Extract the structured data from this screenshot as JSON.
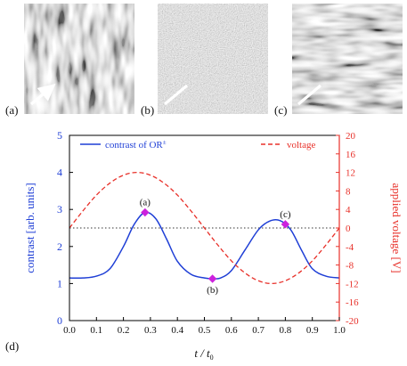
{
  "panels": [
    {
      "label": "(a)",
      "texture": "stripes-diagonal"
    },
    {
      "label": "(b)",
      "texture": "noise-flat"
    },
    {
      "label": "(c)",
      "texture": "stripes-horizontal"
    }
  ],
  "chart_data": {
    "type": "line",
    "panel_label": "(d)",
    "xlabel_main": "t / t",
    "xlabel_sub": "0",
    "ylabel_left": "contrast  [arb. units]",
    "ylabel_right": "applied voltage [V]",
    "xlim": [
      0.0,
      1.0
    ],
    "ylim_left": [
      0,
      5
    ],
    "ylim_right": [
      -20,
      20
    ],
    "x_ticks": [
      "0.0",
      "0.1",
      "0.2",
      "0.3",
      "0.4",
      "0.5",
      "0.6",
      "0.7",
      "0.8",
      "0.9",
      "1.0"
    ],
    "y_left_ticks": [
      "0",
      "1",
      "2",
      "3",
      "4",
      "5"
    ],
    "y_right_ticks": [
      "-20",
      "-16",
      "-12",
      "-8",
      "-4",
      "0",
      "4",
      "8",
      "12",
      "16",
      "20"
    ],
    "grid": false,
    "reference_line": {
      "axis": "left",
      "value": 2.5,
      "style": "dotted"
    },
    "series": [
      {
        "name": "contrast of OR",
        "name_superscript": "±",
        "axis": "left",
        "color": "#1f3fd6",
        "style": "solid",
        "x": [
          0.0,
          0.05,
          0.1,
          0.15,
          0.2,
          0.24,
          0.28,
          0.32,
          0.36,
          0.4,
          0.45,
          0.5,
          0.53,
          0.56,
          0.6,
          0.65,
          0.7,
          0.74,
          0.78,
          0.82,
          0.86,
          0.9,
          0.95,
          1.0
        ],
        "values": [
          1.15,
          1.15,
          1.2,
          1.4,
          2.0,
          2.6,
          2.92,
          2.75,
          2.2,
          1.6,
          1.25,
          1.15,
          1.13,
          1.15,
          1.35,
          1.9,
          2.45,
          2.68,
          2.7,
          2.45,
          1.9,
          1.4,
          1.2,
          1.15
        ]
      },
      {
        "name": "voltage",
        "axis": "right",
        "color": "#e8312a",
        "style": "dashed",
        "x": [
          0.0,
          0.05,
          0.1,
          0.15,
          0.2,
          0.25,
          0.3,
          0.35,
          0.4,
          0.45,
          0.5,
          0.55,
          0.6,
          0.65,
          0.7,
          0.75,
          0.8,
          0.85,
          0.9,
          0.95,
          1.0
        ],
        "values": [
          0.0,
          3.7,
          7.1,
          9.7,
          11.4,
          12.0,
          11.4,
          9.7,
          7.1,
          3.7,
          0.0,
          -3.7,
          -7.1,
          -9.7,
          -11.4,
          -12.0,
          -11.4,
          -9.7,
          -7.1,
          -3.7,
          0.0
        ]
      }
    ],
    "markers": [
      {
        "label": "(a)",
        "x": 0.28,
        "y": 2.92,
        "color": "#cc22dd"
      },
      {
        "label": "(b)",
        "x": 0.53,
        "y": 1.13,
        "color": "#cc22dd"
      },
      {
        "label": "(c)",
        "x": 0.8,
        "y": 2.6,
        "color": "#cc22dd"
      }
    ]
  }
}
